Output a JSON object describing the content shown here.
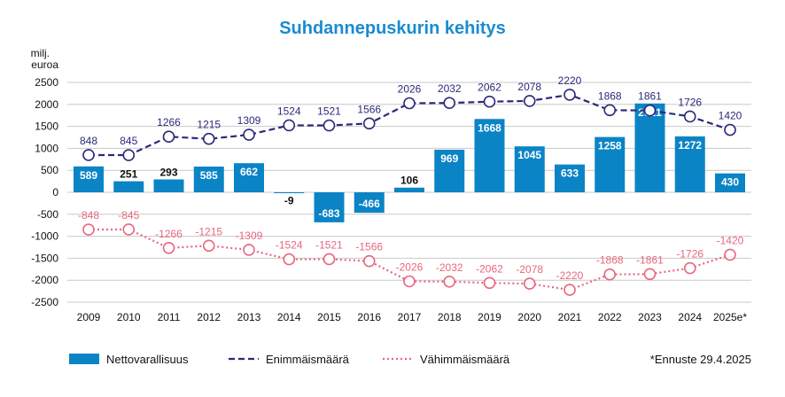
{
  "colors": {
    "bar": "#0b84c6",
    "max_line": "#2b2a7a",
    "min_line": "#e8677e",
    "title": "#1a8bd0",
    "grid": "#c9c9c9",
    "text": "#111111"
  },
  "chart_data": {
    "type": "bar",
    "title": "Suhdannepuskurin kehitys",
    "ylabel": "milj.\neuroa",
    "ylabel_lines": [
      "milj.",
      "euroa"
    ],
    "ylim": [
      -2500,
      2500
    ],
    "yticks": [
      2500,
      2000,
      1500,
      1000,
      500,
      0,
      -500,
      -1000,
      -1500,
      -2000,
      -2500
    ],
    "grid": true,
    "categories": [
      "2009",
      "2010",
      "2011",
      "2012",
      "2013",
      "2014",
      "2015",
      "2016",
      "2017",
      "2018",
      "2019",
      "2020",
      "2021",
      "2022",
      "2023",
      "2024",
      "2025e*"
    ],
    "series": [
      {
        "name": "Nettovarallisuus",
        "kind": "bar",
        "values": [
          589,
          251,
          293,
          585,
          662,
          -9,
          -683,
          -466,
          106,
          969,
          1668,
          1045,
          633,
          1258,
          2021,
          1272,
          430
        ]
      },
      {
        "name": "Enimmäismäärä",
        "kind": "line",
        "style": "dashed",
        "values": [
          848,
          845,
          1266,
          1215,
          1309,
          1524,
          1521,
          1566,
          2026,
          2032,
          2062,
          2078,
          2220,
          1868,
          1861,
          1726,
          1420
        ]
      },
      {
        "name": "Vähimmäismäärä",
        "kind": "line",
        "style": "dotted",
        "values": [
          -848,
          -845,
          -1266,
          -1215,
          -1309,
          -1524,
          -1521,
          -1566,
          -2026,
          -2032,
          -2062,
          -2078,
          -2220,
          -1868,
          -1861,
          -1726,
          -1420
        ]
      }
    ],
    "legend": {
      "placement": "bottom",
      "items": [
        "Nettovarallisuus",
        "Enimmäismäärä",
        "Vähimmäismäärä"
      ]
    },
    "footnote": "*Ennuste 29.4.2025"
  }
}
